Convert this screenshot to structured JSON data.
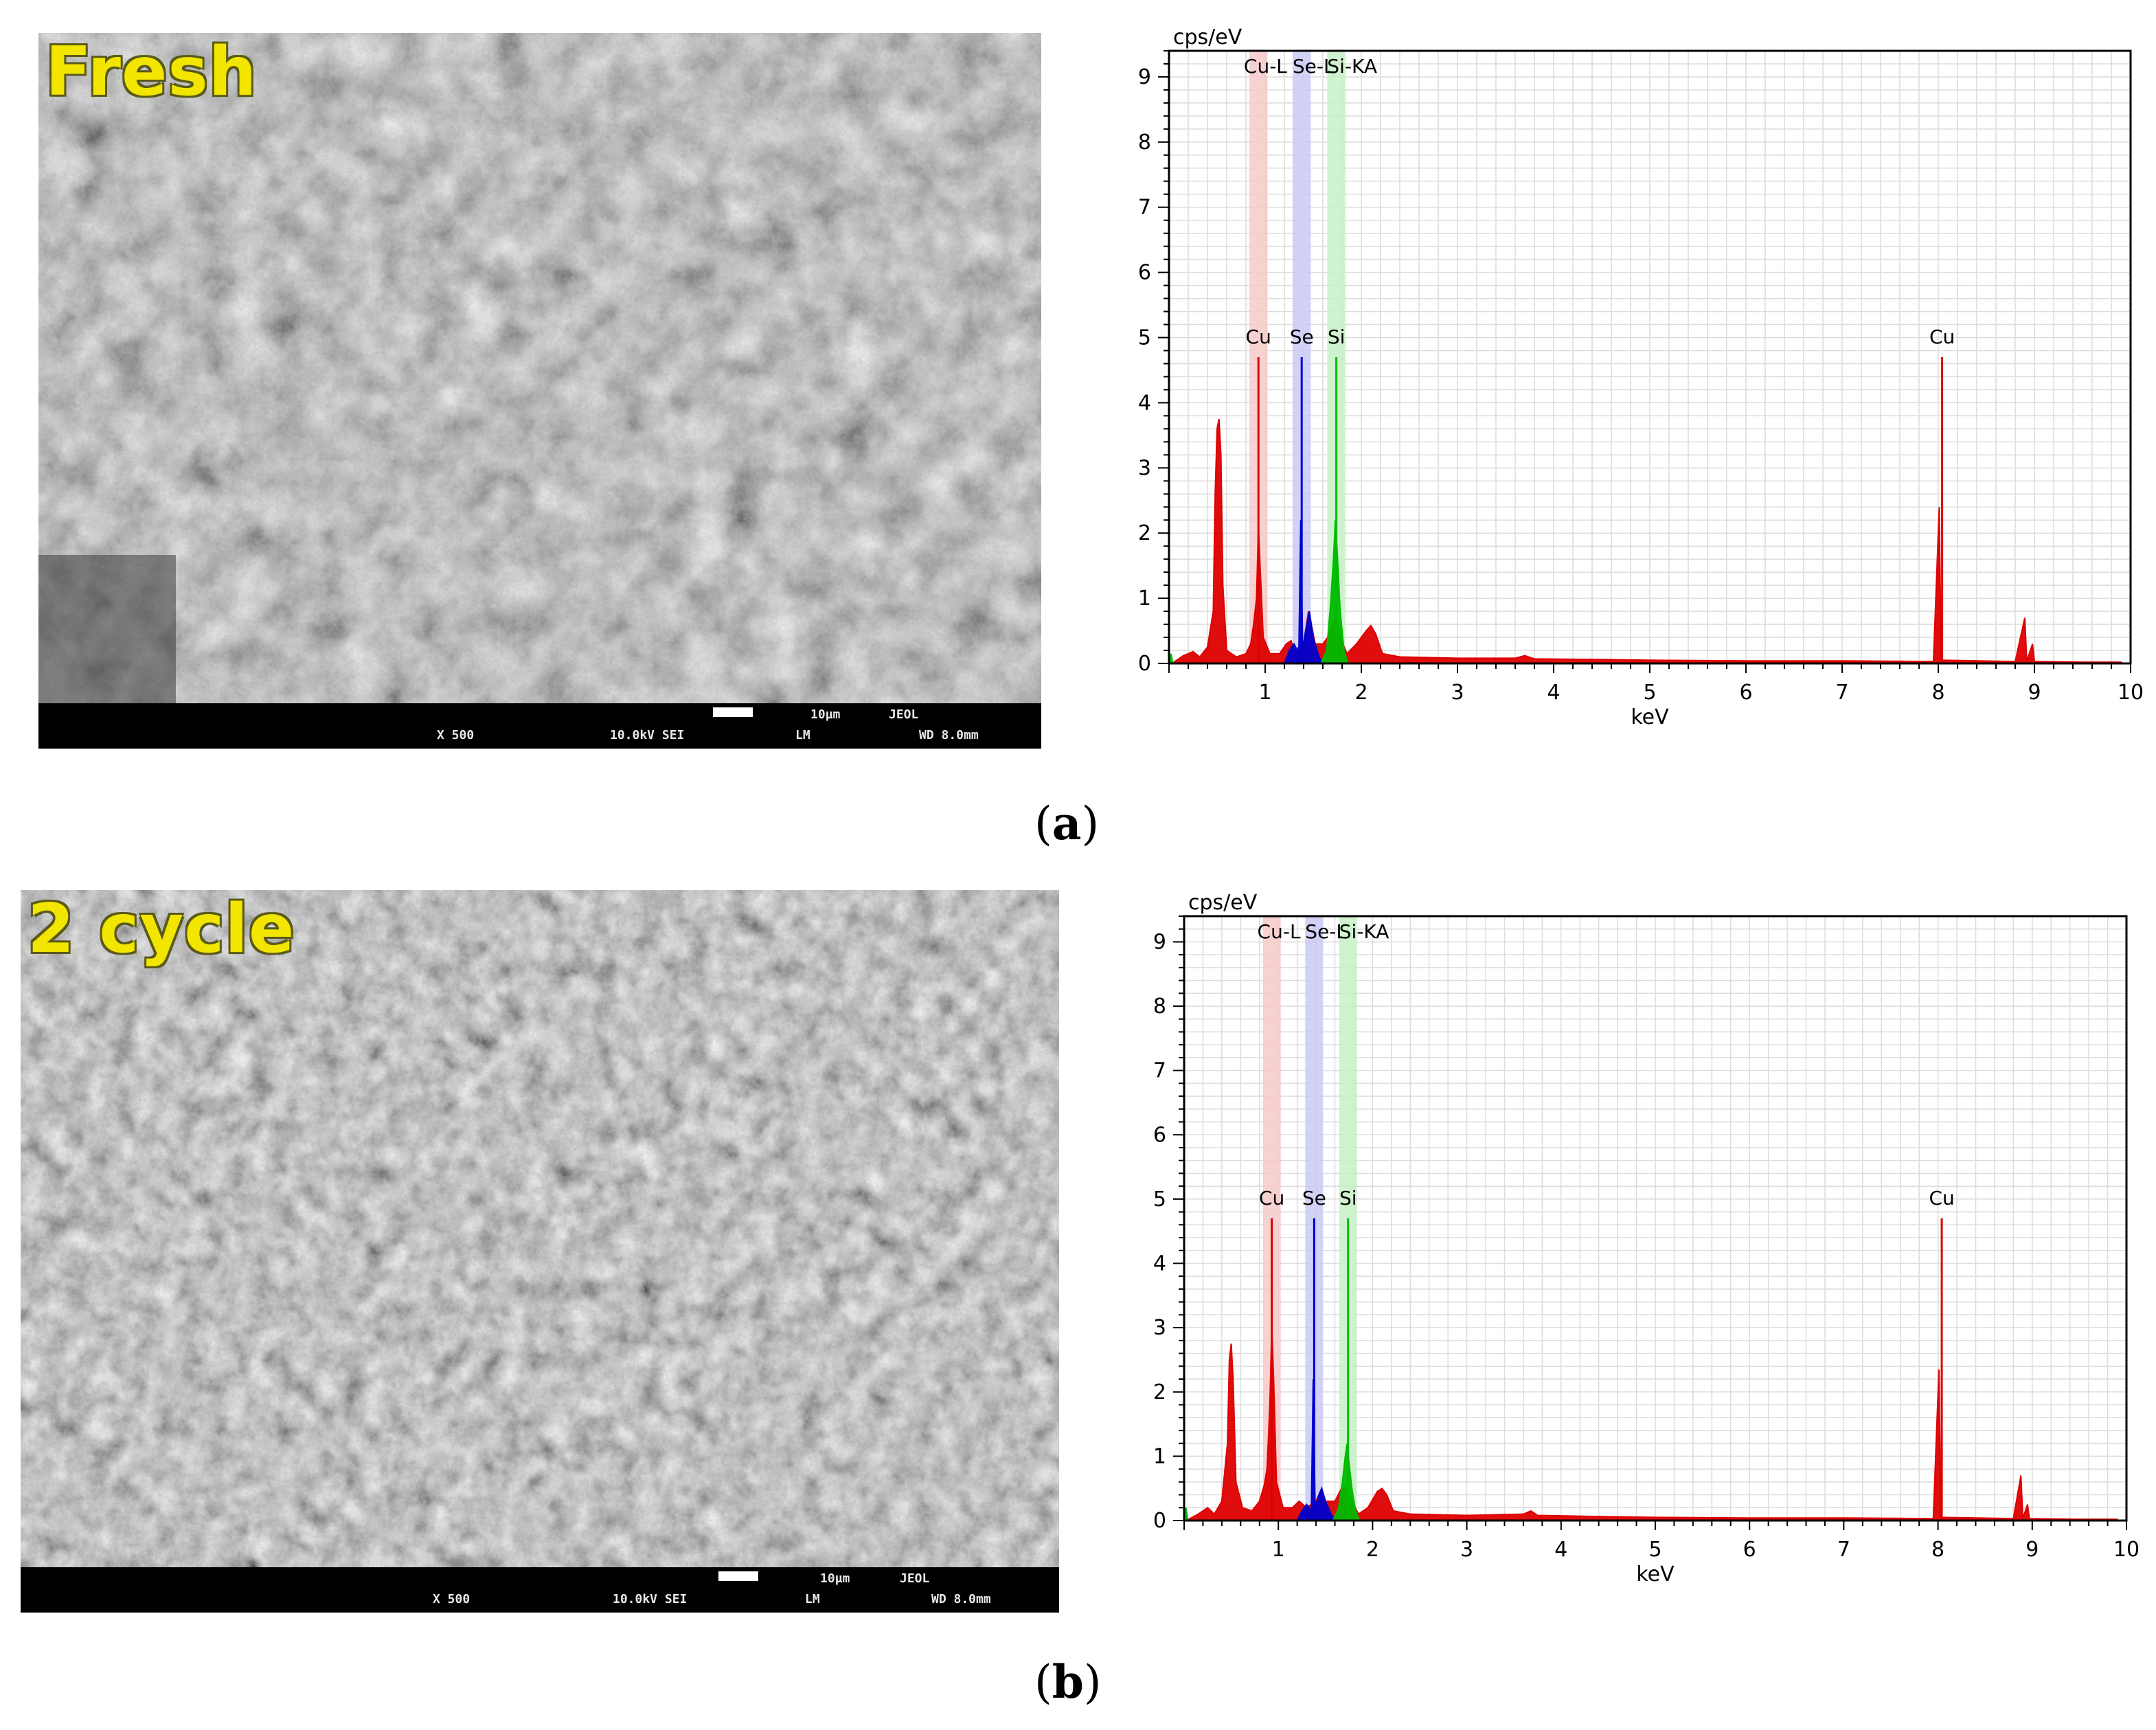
{
  "panels": [
    {
      "id": "a",
      "caption_letter": "a",
      "sem": {
        "label": "Fresh",
        "scale_text": "10µm",
        "brand": "JEOL",
        "magnification": "X 500",
        "voltage_mode": "10.0kV SEI",
        "lm": "LM",
        "wd": "WD 8.0mm"
      },
      "chart_data": {
        "type": "line",
        "title": "",
        "ylabel": "cps/eV",
        "xlabel": "keV",
        "xlim": [
          0,
          10
        ],
        "ylim": [
          0,
          9.4
        ],
        "x_ticks": [
          "1",
          "2",
          "3",
          "4",
          "5",
          "6",
          "7",
          "8",
          "9",
          "10"
        ],
        "y_ticks": [
          "0",
          "1",
          "2",
          "3",
          "4",
          "5",
          "6",
          "7",
          "8",
          "9"
        ],
        "grid": true,
        "bands": [
          {
            "label": "Cu-L",
            "center": 0.93,
            "color": "#f7c9c9"
          },
          {
            "label": "Se-L",
            "center": 1.38,
            "color": "#c9caf5"
          },
          {
            "label": "Si-KA",
            "center": 1.74,
            "color": "#c7f0c7"
          }
        ],
        "band_labels": [
          "Cu-L",
          "Se-L",
          "Si-KA"
        ],
        "peak_markers": [
          {
            "label": "Cu",
            "x": 0.93,
            "height": 4.7,
            "color": "#dd0000"
          },
          {
            "label": "Se",
            "x": 1.38,
            "height": 4.7,
            "color": "#0000cc"
          },
          {
            "label": "Si",
            "x": 1.74,
            "height": 4.7,
            "color": "#00bb00"
          },
          {
            "label": "Cu",
            "x": 8.04,
            "height": 4.7,
            "color": "#dd0000"
          }
        ],
        "series": [
          {
            "color": "#dd0000",
            "points": [
              [
                0.05,
                0.02
              ],
              [
                0.15,
                0.12
              ],
              [
                0.25,
                0.18
              ],
              [
                0.32,
                0.1
              ],
              [
                0.4,
                0.25
              ],
              [
                0.46,
                0.8
              ],
              [
                0.48,
                2.6
              ],
              [
                0.5,
                3.6
              ],
              [
                0.52,
                3.75
              ],
              [
                0.54,
                3.2
              ],
              [
                0.56,
                1.2
              ],
              [
                0.6,
                0.2
              ],
              [
                0.7,
                0.1
              ],
              [
                0.8,
                0.15
              ],
              [
                0.85,
                0.3
              ],
              [
                0.88,
                0.6
              ],
              [
                0.91,
                1.0
              ],
              [
                0.93,
                2.1
              ],
              [
                0.95,
                1.4
              ],
              [
                0.98,
                0.4
              ],
              [
                1.05,
                0.15
              ],
              [
                1.15,
                0.15
              ],
              [
                1.22,
                0.3
              ],
              [
                1.27,
                0.35
              ],
              [
                1.3,
                0.2
              ],
              [
                1.4,
                0.3
              ],
              [
                1.45,
                0.8
              ],
              [
                1.48,
                0.6
              ],
              [
                1.52,
                0.3
              ],
              [
                1.6,
                0.3
              ],
              [
                1.65,
                0.4
              ],
              [
                1.7,
                0.6
              ],
              [
                1.74,
                0.7
              ],
              [
                1.78,
                0.4
              ],
              [
                1.85,
                0.15
              ],
              [
                1.95,
                0.3
              ],
              [
                2.05,
                0.5
              ],
              [
                2.1,
                0.58
              ],
              [
                2.15,
                0.45
              ],
              [
                2.22,
                0.15
              ],
              [
                2.4,
                0.1
              ],
              [
                3.0,
                0.08
              ],
              [
                3.6,
                0.08
              ],
              [
                3.7,
                0.12
              ],
              [
                3.8,
                0.07
              ],
              [
                4.5,
                0.06
              ],
              [
                5.0,
                0.05
              ],
              [
                6.0,
                0.04
              ],
              [
                7.0,
                0.04
              ],
              [
                7.95,
                0.03
              ],
              [
                8.01,
                2.4
              ],
              [
                8.03,
                0.05
              ],
              [
                8.8,
                0.03
              ],
              [
                8.9,
                0.7
              ],
              [
                8.92,
                0.03
              ],
              [
                8.98,
                0.3
              ],
              [
                9.0,
                0.03
              ],
              [
                9.5,
                0.02
              ],
              [
                9.9,
                0.02
              ]
            ]
          },
          {
            "color": "#0000cc",
            "points": [
              [
                1.2,
                0.0
              ],
              [
                1.25,
                0.2
              ],
              [
                1.3,
                0.3
              ],
              [
                1.35,
                0.15
              ],
              [
                1.37,
                2.2
              ],
              [
                1.39,
                0.2
              ],
              [
                1.42,
                0.5
              ],
              [
                1.46,
                0.8
              ],
              [
                1.5,
                0.4
              ],
              [
                1.56,
                0.1
              ],
              [
                1.6,
                0.0
              ]
            ]
          },
          {
            "color": "#00bb00",
            "points": [
              [
                0.0,
                0.0
              ],
              [
                0.02,
                0.15
              ],
              [
                0.04,
                0.0
              ],
              [
                1.58,
                0.0
              ],
              [
                1.64,
                0.2
              ],
              [
                1.68,
                0.9
              ],
              [
                1.71,
                1.6
              ],
              [
                1.73,
                2.2
              ],
              [
                1.75,
                1.7
              ],
              [
                1.78,
                0.8
              ],
              [
                1.82,
                0.2
              ],
              [
                1.86,
                0.0
              ]
            ]
          }
        ]
      }
    },
    {
      "id": "b",
      "caption_letter": "b",
      "sem": {
        "label": "2 cycle",
        "scale_text": "10µm",
        "brand": "JEOL",
        "magnification": "X 500",
        "voltage_mode": "10.0kV SEI",
        "lm": "LM",
        "wd": "WD 8.0mm"
      },
      "chart_data": {
        "type": "line",
        "title": "",
        "ylabel": "cps/eV",
        "xlabel": "keV",
        "xlim": [
          0,
          10
        ],
        "ylim": [
          0,
          9.4
        ],
        "x_ticks": [
          "1",
          "2",
          "3",
          "4",
          "5",
          "6",
          "7",
          "8",
          "9",
          "10"
        ],
        "y_ticks": [
          "0",
          "1",
          "2",
          "3",
          "4",
          "5",
          "6",
          "7",
          "8",
          "9"
        ],
        "grid": true,
        "bands": [
          {
            "label": "Cu-L",
            "center": 0.93,
            "color": "#f7c9c9"
          },
          {
            "label": "Se-L",
            "center": 1.38,
            "color": "#c9caf5"
          },
          {
            "label": "Si-KA",
            "center": 1.74,
            "color": "#c7f0c7"
          }
        ],
        "band_labels": [
          "Cu-L",
          "Se-L",
          "Si-KA"
        ],
        "peak_markers": [
          {
            "label": "Cu",
            "x": 0.93,
            "height": 4.7,
            "color": "#dd0000"
          },
          {
            "label": "Se",
            "x": 1.38,
            "height": 4.7,
            "color": "#0000cc"
          },
          {
            "label": "Si",
            "x": 1.74,
            "height": 4.7,
            "color": "#00bb00"
          },
          {
            "label": "Cu",
            "x": 8.04,
            "height": 4.7,
            "color": "#dd0000"
          }
        ],
        "series": [
          {
            "color": "#dd0000",
            "points": [
              [
                0.05,
                0.02
              ],
              [
                0.15,
                0.1
              ],
              [
                0.25,
                0.2
              ],
              [
                0.32,
                0.1
              ],
              [
                0.4,
                0.3
              ],
              [
                0.46,
                1.2
              ],
              [
                0.48,
                2.5
              ],
              [
                0.5,
                2.75
              ],
              [
                0.52,
                2.2
              ],
              [
                0.55,
                0.6
              ],
              [
                0.62,
                0.2
              ],
              [
                0.72,
                0.15
              ],
              [
                0.8,
                0.3
              ],
              [
                0.85,
                0.55
              ],
              [
                0.88,
                0.8
              ],
              [
                0.91,
                1.8
              ],
              [
                0.93,
                3.0
              ],
              [
                0.95,
                2.2
              ],
              [
                0.98,
                0.6
              ],
              [
                1.05,
                0.2
              ],
              [
                1.15,
                0.2
              ],
              [
                1.22,
                0.3
              ],
              [
                1.3,
                0.2
              ],
              [
                1.4,
                0.3
              ],
              [
                1.46,
                0.5
              ],
              [
                1.5,
                0.3
              ],
              [
                1.6,
                0.3
              ],
              [
                1.67,
                0.5
              ],
              [
                1.72,
                0.5
              ],
              [
                1.78,
                0.3
              ],
              [
                1.85,
                0.1
              ],
              [
                1.95,
                0.2
              ],
              [
                2.05,
                0.45
              ],
              [
                2.1,
                0.5
              ],
              [
                2.15,
                0.4
              ],
              [
                2.22,
                0.15
              ],
              [
                2.4,
                0.1
              ],
              [
                3.0,
                0.08
              ],
              [
                3.6,
                0.1
              ],
              [
                3.68,
                0.15
              ],
              [
                3.75,
                0.08
              ],
              [
                4.5,
                0.06
              ],
              [
                5.0,
                0.05
              ],
              [
                6.0,
                0.04
              ],
              [
                7.0,
                0.04
              ],
              [
                7.95,
                0.03
              ],
              [
                8.01,
                2.35
              ],
              [
                8.03,
                0.05
              ],
              [
                8.8,
                0.03
              ],
              [
                8.88,
                0.7
              ],
              [
                8.9,
                0.03
              ],
              [
                8.95,
                0.25
              ],
              [
                8.97,
                0.03
              ],
              [
                9.5,
                0.02
              ],
              [
                9.9,
                0.02
              ]
            ]
          },
          {
            "color": "#0000cc",
            "points": [
              [
                1.2,
                0.0
              ],
              [
                1.25,
                0.15
              ],
              [
                1.3,
                0.25
              ],
              [
                1.35,
                0.15
              ],
              [
                1.37,
                2.2
              ],
              [
                1.39,
                0.2
              ],
              [
                1.43,
                0.4
              ],
              [
                1.46,
                0.5
              ],
              [
                1.5,
                0.3
              ],
              [
                1.56,
                0.1
              ],
              [
                1.6,
                0.0
              ]
            ]
          },
          {
            "color": "#00bb00",
            "points": [
              [
                0.0,
                0.0
              ],
              [
                0.02,
                0.2
              ],
              [
                0.04,
                0.0
              ],
              [
                1.58,
                0.0
              ],
              [
                1.64,
                0.2
              ],
              [
                1.68,
                0.6
              ],
              [
                1.71,
                1.0
              ],
              [
                1.73,
                1.2
              ],
              [
                1.75,
                0.9
              ],
              [
                1.78,
                0.5
              ],
              [
                1.82,
                0.15
              ],
              [
                1.86,
                0.0
              ]
            ]
          }
        ]
      }
    }
  ]
}
